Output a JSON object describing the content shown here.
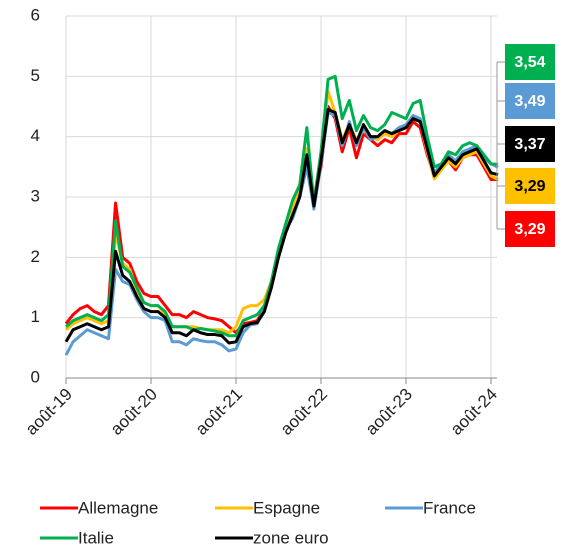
{
  "chart_data": {
    "type": "line",
    "categories": [
      "août-19",
      null,
      null,
      null,
      null,
      null,
      null,
      null,
      null,
      null,
      null,
      null,
      "août-20",
      null,
      null,
      null,
      null,
      null,
      null,
      null,
      null,
      null,
      null,
      null,
      "août-21",
      null,
      null,
      null,
      null,
      null,
      null,
      null,
      null,
      null,
      null,
      null,
      "août-22",
      null,
      null,
      null,
      null,
      null,
      null,
      null,
      null,
      null,
      null,
      null,
      "août-23",
      null,
      null,
      null,
      null,
      null,
      null,
      null,
      null,
      null,
      null,
      null,
      "août-24",
      null
    ],
    "ylim": [
      0,
      6
    ],
    "yticks": [
      0,
      1,
      2,
      3,
      4,
      5,
      6
    ],
    "grid": true,
    "series": [
      {
        "name": "Allemagne",
        "color": "#ff0000",
        "values": [
          0.9,
          1.05,
          1.15,
          1.2,
          1.1,
          1.05,
          1.2,
          2.9,
          2.0,
          1.9,
          1.6,
          1.4,
          1.35,
          1.35,
          1.2,
          1.05,
          1.05,
          1.0,
          1.1,
          1.05,
          1.0,
          0.98,
          0.95,
          0.85,
          0.75,
          0.9,
          0.92,
          0.95,
          1.15,
          1.55,
          2.05,
          2.45,
          2.75,
          3.1,
          3.65,
          2.95,
          3.5,
          4.5,
          4.3,
          3.75,
          4.15,
          3.65,
          4.05,
          3.95,
          3.85,
          3.95,
          3.9,
          4.05,
          4.05,
          4.25,
          4.15,
          3.7,
          3.35,
          3.5,
          3.6,
          3.45,
          3.65,
          3.7,
          3.7,
          3.5,
          3.29,
          3.29
        ],
        "value_labels": [
          null,
          null,
          null,
          null,
          null,
          null,
          null,
          null,
          null,
          null,
          null,
          null,
          null,
          null,
          null,
          null,
          null,
          null,
          null,
          null,
          null,
          null,
          null,
          null,
          null,
          null,
          null,
          null,
          null,
          null,
          null,
          null,
          null,
          null,
          null,
          null,
          null,
          null,
          null,
          null,
          null,
          null,
          null,
          null,
          null,
          null,
          null,
          null,
          null,
          null,
          null,
          null,
          null,
          null,
          null,
          null,
          null,
          null,
          null,
          null,
          null,
          "3,29"
        ]
      },
      {
        "name": "Espagne",
        "color": "#ffc000",
        "values": [
          0.8,
          0.9,
          0.95,
          1.0,
          0.95,
          0.9,
          0.95,
          2.4,
          1.9,
          1.8,
          1.45,
          1.25,
          1.2,
          1.2,
          1.05,
          0.85,
          0.85,
          0.85,
          0.85,
          0.82,
          0.8,
          0.8,
          0.8,
          0.75,
          0.85,
          1.15,
          1.2,
          1.2,
          1.3,
          1.6,
          2.1,
          2.5,
          2.8,
          3.2,
          3.8,
          2.95,
          3.7,
          4.75,
          4.4,
          3.95,
          4.2,
          3.95,
          4.1,
          4.0,
          3.95,
          4.05,
          4.0,
          4.1,
          4.15,
          4.3,
          4.25,
          3.75,
          3.3,
          3.45,
          3.6,
          3.5,
          3.65,
          3.7,
          3.75,
          3.55,
          3.35,
          3.29
        ],
        "value_labels": [
          null,
          null,
          null,
          null,
          null,
          null,
          null,
          null,
          null,
          null,
          null,
          null,
          null,
          null,
          null,
          null,
          null,
          null,
          null,
          null,
          null,
          null,
          null,
          null,
          null,
          null,
          null,
          null,
          null,
          null,
          null,
          null,
          null,
          null,
          null,
          null,
          null,
          null,
          null,
          null,
          null,
          null,
          null,
          null,
          null,
          null,
          null,
          null,
          null,
          null,
          null,
          null,
          null,
          null,
          null,
          null,
          null,
          null,
          null,
          null,
          null,
          "3,29"
        ]
      },
      {
        "name": "France",
        "color": "#5b9bd5",
        "values": [
          0.38,
          0.6,
          0.7,
          0.8,
          0.75,
          0.7,
          0.65,
          1.8,
          1.6,
          1.55,
          1.3,
          1.1,
          1.0,
          1.0,
          0.95,
          0.6,
          0.6,
          0.55,
          0.65,
          0.62,
          0.6,
          0.6,
          0.55,
          0.45,
          0.48,
          0.75,
          0.88,
          0.9,
          1.15,
          1.6,
          2.05,
          2.45,
          2.65,
          3.0,
          3.5,
          2.8,
          3.55,
          4.4,
          4.35,
          3.85,
          4.25,
          3.85,
          4.15,
          3.95,
          4.0,
          4.1,
          4.05,
          4.15,
          4.2,
          4.35,
          4.3,
          3.85,
          3.4,
          3.55,
          3.7,
          3.6,
          3.75,
          3.8,
          3.85,
          3.65,
          3.55,
          3.49
        ],
        "value_labels": [
          null,
          null,
          null,
          null,
          null,
          null,
          null,
          null,
          null,
          null,
          null,
          null,
          null,
          null,
          null,
          null,
          null,
          null,
          null,
          null,
          null,
          null,
          null,
          null,
          null,
          null,
          null,
          null,
          null,
          null,
          null,
          null,
          null,
          null,
          null,
          null,
          null,
          null,
          null,
          null,
          null,
          null,
          null,
          null,
          null,
          null,
          null,
          null,
          null,
          null,
          null,
          null,
          null,
          null,
          null,
          null,
          null,
          null,
          null,
          null,
          null,
          "3,49"
        ]
      },
      {
        "name": "Italie",
        "color": "#00b050",
        "values": [
          0.85,
          0.95,
          1.0,
          1.05,
          1.0,
          0.95,
          1.05,
          2.6,
          1.85,
          1.75,
          1.5,
          1.25,
          1.2,
          1.2,
          1.1,
          0.85,
          0.85,
          0.85,
          0.8,
          0.82,
          0.8,
          0.78,
          0.75,
          0.7,
          0.7,
          0.95,
          1.0,
          1.05,
          1.2,
          1.6,
          2.15,
          2.55,
          2.95,
          3.2,
          4.15,
          2.9,
          3.75,
          4.95,
          5.0,
          4.3,
          4.6,
          4.1,
          4.35,
          4.15,
          4.1,
          4.2,
          4.4,
          4.35,
          4.3,
          4.55,
          4.6,
          4.0,
          3.5,
          3.55,
          3.75,
          3.7,
          3.85,
          3.9,
          3.85,
          3.7,
          3.55,
          3.54
        ],
        "value_labels": [
          null,
          null,
          null,
          null,
          null,
          null,
          null,
          null,
          null,
          null,
          null,
          null,
          null,
          null,
          null,
          null,
          null,
          null,
          null,
          null,
          null,
          null,
          null,
          null,
          null,
          null,
          null,
          null,
          null,
          null,
          null,
          null,
          null,
          null,
          null,
          null,
          null,
          null,
          null,
          null,
          null,
          null,
          null,
          null,
          null,
          null,
          null,
          null,
          null,
          null,
          null,
          null,
          null,
          null,
          null,
          null,
          null,
          null,
          null,
          null,
          null,
          "3,54"
        ]
      },
      {
        "name": "zone euro",
        "color": "#000000",
        "values": [
          0.6,
          0.8,
          0.85,
          0.9,
          0.85,
          0.8,
          0.85,
          2.1,
          1.7,
          1.6,
          1.35,
          1.15,
          1.1,
          1.1,
          1.0,
          0.75,
          0.75,
          0.7,
          0.8,
          0.75,
          0.72,
          0.72,
          0.7,
          0.58,
          0.6,
          0.85,
          0.9,
          0.92,
          1.1,
          1.5,
          2.0,
          2.4,
          2.7,
          3.0,
          3.7,
          2.85,
          3.6,
          4.45,
          4.4,
          3.9,
          4.2,
          3.9,
          4.2,
          4.0,
          4.0,
          4.1,
          4.05,
          4.1,
          4.15,
          4.3,
          4.25,
          3.8,
          3.35,
          3.5,
          3.65,
          3.55,
          3.7,
          3.75,
          3.8,
          3.6,
          3.4,
          3.37
        ],
        "value_labels": [
          null,
          null,
          null,
          null,
          null,
          null,
          null,
          null,
          null,
          null,
          null,
          null,
          null,
          null,
          null,
          null,
          null,
          null,
          null,
          null,
          null,
          null,
          null,
          null,
          null,
          null,
          null,
          null,
          null,
          null,
          null,
          null,
          null,
          null,
          null,
          null,
          null,
          null,
          null,
          null,
          null,
          null,
          null,
          null,
          null,
          null,
          null,
          null,
          null,
          null,
          null,
          null,
          null,
          null,
          null,
          null,
          null,
          null,
          null,
          null,
          null,
          "3,37"
        ]
      }
    ]
  }
}
